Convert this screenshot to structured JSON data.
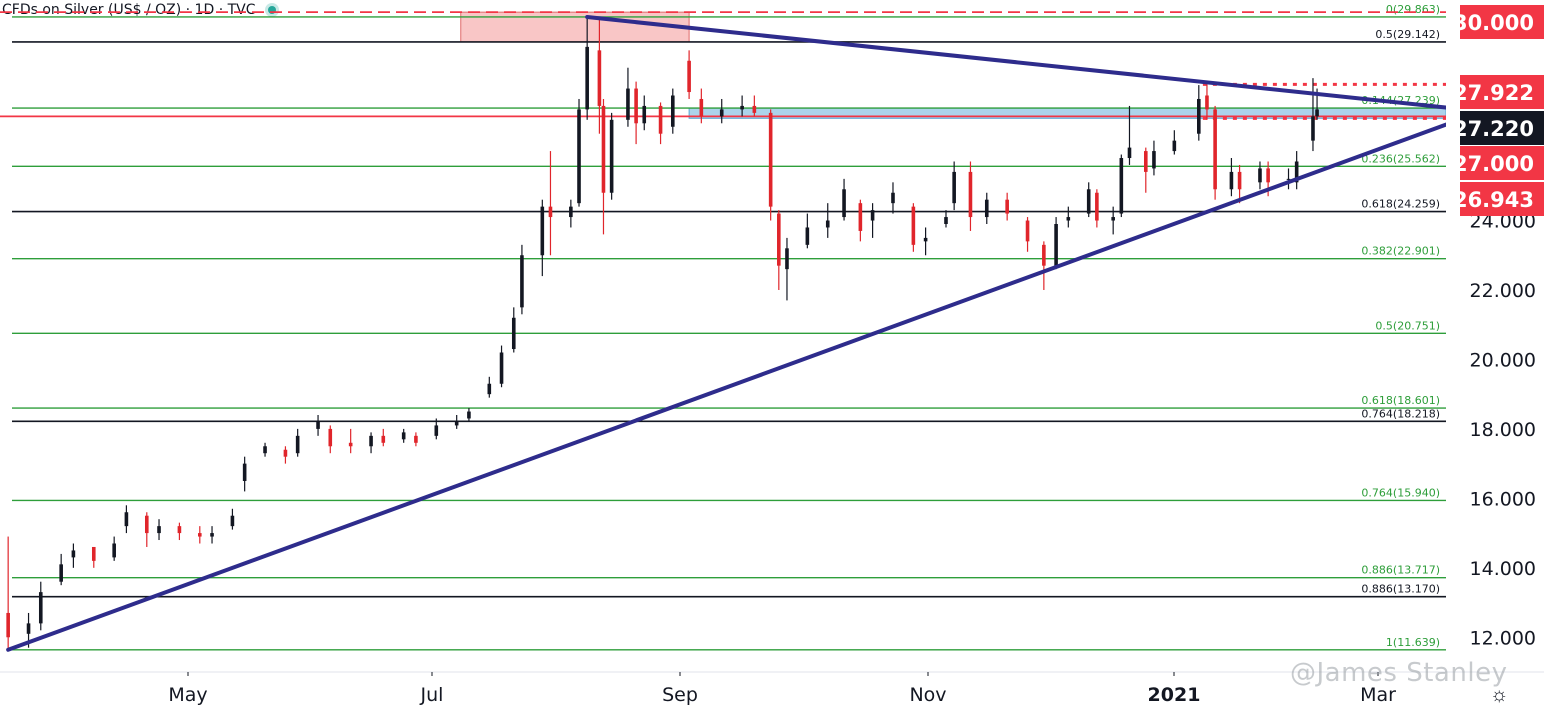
{
  "header": {
    "title": "CFDs on Silver (US$ / OZ) · 1D · TVC"
  },
  "watermark": "@James Stanley",
  "icons": {
    "settings": "gear-icon",
    "status": "status-dot"
  },
  "colors": {
    "up": "#131722",
    "down": "#e0252b",
    "fib_green": "#2e9e3a",
    "fib_black": "#131722",
    "trendline": "#2e2c8c",
    "tag_red": "#f23645",
    "tag_navy": "#131722",
    "zone_red": "#f7b8b8",
    "zone_blue": "#9ecbe8"
  },
  "chart_data": {
    "type": "candlestick",
    "symbol": "CFDs on Silver (US$ / OZ)",
    "timeframe": "1D",
    "y_axis": {
      "ylim": [
        11.0,
        30.35
      ],
      "ticks": [
        "12.000",
        "14.000",
        "16.000",
        "18.000",
        "20.000",
        "22.000",
        "24.000"
      ]
    },
    "x_axis": {
      "labels": [
        "May",
        "Jul",
        "Sep",
        "Nov",
        "2021",
        "Mar"
      ],
      "bold": [
        "2021"
      ]
    },
    "price_tags": [
      {
        "label": "30.000",
        "value": 30.0,
        "style": "red"
      },
      {
        "label": "27.922",
        "value": 27.922,
        "style": "red"
      },
      {
        "label": "27.220",
        "value": 27.22,
        "style": "navy"
      },
      {
        "label": "27.000",
        "value": 27.0,
        "style": "red"
      },
      {
        "label": "26.943",
        "value": 26.943,
        "style": "red"
      }
    ],
    "fib_levels": [
      {
        "label": "0(29.863)",
        "value": 29.863,
        "color": "green"
      },
      {
        "label": "0.5(29.142)",
        "value": 29.142,
        "color": "black"
      },
      {
        "label": "0.144(27.239)",
        "value": 27.239,
        "color": "green"
      },
      {
        "label": "0.236(25.562)",
        "value": 25.562,
        "color": "green"
      },
      {
        "label": "0.618(24.259)",
        "value": 24.259,
        "color": "black"
      },
      {
        "label": "0.382(22.901)",
        "value": 22.901,
        "color": "green"
      },
      {
        "label": "0.5(20.751)",
        "value": 20.751,
        "color": "green"
      },
      {
        "label": "0.618(18.601)",
        "value": 18.601,
        "color": "green"
      },
      {
        "label": "0.764(18.218)",
        "value": 18.218,
        "color": "black"
      },
      {
        "label": "0.764(15.940)",
        "value": 15.94,
        "color": "green"
      },
      {
        "label": "0.886(13.717)",
        "value": 13.717,
        "color": "green"
      },
      {
        "label": "0.886(13.170)",
        "value": 13.17,
        "color": "black"
      },
      {
        "label": "1(11.639)",
        "value": 11.639,
        "color": "green"
      }
    ],
    "horizontal_lines": [
      {
        "value": 30.0,
        "style": "red-dashed"
      },
      {
        "value": 27.0,
        "style": "red-solid"
      },
      {
        "value": 27.922,
        "style": "red-dotted",
        "from_date": "2021-01-05"
      },
      {
        "value": 26.943,
        "style": "red-dotted",
        "from_date": "2021-01-05"
      }
    ],
    "zones": [
      {
        "from_date": "2020-07-07",
        "to_date": "2020-09-01",
        "low": 29.142,
        "high": 30.0,
        "color": "red"
      },
      {
        "from_date": "2020-09-01",
        "to_date": "2021-03-10",
        "low": 26.943,
        "high": 27.239,
        "color": "blue"
      }
    ],
    "trendlines": [
      {
        "from": [
          "2020-08-07",
          29.86
        ],
        "to": [
          "2021-03-10",
          27.2
        ]
      },
      {
        "from": [
          "2020-03-18",
          11.64
        ],
        "to": [
          "2021-03-10",
          26.95
        ]
      }
    ],
    "candles": [
      {
        "date": "2020-03-18",
        "o": 12.7,
        "h": 14.9,
        "l": 11.6,
        "c": 12.0
      },
      {
        "date": "2020-03-23",
        "o": 12.1,
        "h": 12.7,
        "l": 11.7,
        "c": 12.4
      },
      {
        "date": "2020-03-26",
        "o": 12.4,
        "h": 13.6,
        "l": 12.2,
        "c": 13.3
      },
      {
        "date": "2020-03-31",
        "o": 13.6,
        "h": 14.4,
        "l": 13.5,
        "c": 14.1
      },
      {
        "date": "2020-04-03",
        "o": 14.3,
        "h": 14.7,
        "l": 14.0,
        "c": 14.5
      },
      {
        "date": "2020-04-08",
        "o": 14.6,
        "h": 14.6,
        "l": 14.0,
        "c": 14.2
      },
      {
        "date": "2020-04-13",
        "o": 14.3,
        "h": 14.9,
        "l": 14.2,
        "c": 14.7
      },
      {
        "date": "2020-04-16",
        "o": 15.2,
        "h": 15.8,
        "l": 15.0,
        "c": 15.6
      },
      {
        "date": "2020-04-21",
        "o": 15.5,
        "h": 15.6,
        "l": 14.6,
        "c": 15.0
      },
      {
        "date": "2020-04-24",
        "o": 15.0,
        "h": 15.4,
        "l": 14.8,
        "c": 15.2
      },
      {
        "date": "2020-04-29",
        "o": 15.2,
        "h": 15.3,
        "l": 14.8,
        "c": 15.0
      },
      {
        "date": "2020-05-04",
        "o": 15.0,
        "h": 15.2,
        "l": 14.7,
        "c": 14.9
      },
      {
        "date": "2020-05-07",
        "o": 14.9,
        "h": 15.2,
        "l": 14.7,
        "c": 15.0
      },
      {
        "date": "2020-05-12",
        "o": 15.2,
        "h": 15.7,
        "l": 15.1,
        "c": 15.5
      },
      {
        "date": "2020-05-15",
        "o": 16.5,
        "h": 17.2,
        "l": 16.2,
        "c": 17.0
      },
      {
        "date": "2020-05-20",
        "o": 17.3,
        "h": 17.6,
        "l": 17.2,
        "c": 17.5
      },
      {
        "date": "2020-05-25",
        "o": 17.4,
        "h": 17.5,
        "l": 17.0,
        "c": 17.2
      },
      {
        "date": "2020-05-28",
        "o": 17.3,
        "h": 18.0,
        "l": 17.2,
        "c": 17.8
      },
      {
        "date": "2020-06-02",
        "o": 18.0,
        "h": 18.4,
        "l": 17.8,
        "c": 18.2
      },
      {
        "date": "2020-06-05",
        "o": 18.0,
        "h": 18.1,
        "l": 17.3,
        "c": 17.5
      },
      {
        "date": "2020-06-10",
        "o": 17.6,
        "h": 18.0,
        "l": 17.3,
        "c": 17.5
      },
      {
        "date": "2020-06-15",
        "o": 17.5,
        "h": 17.9,
        "l": 17.3,
        "c": 17.8
      },
      {
        "date": "2020-06-18",
        "o": 17.8,
        "h": 18.0,
        "l": 17.5,
        "c": 17.6
      },
      {
        "date": "2020-06-23",
        "o": 17.7,
        "h": 18.0,
        "l": 17.6,
        "c": 17.9
      },
      {
        "date": "2020-06-26",
        "o": 17.8,
        "h": 17.9,
        "l": 17.5,
        "c": 17.6
      },
      {
        "date": "2020-07-01",
        "o": 17.8,
        "h": 18.3,
        "l": 17.7,
        "c": 18.1
      },
      {
        "date": "2020-07-06",
        "o": 18.1,
        "h": 18.4,
        "l": 18.0,
        "c": 18.2
      },
      {
        "date": "2020-07-09",
        "o": 18.3,
        "h": 18.6,
        "l": 18.2,
        "c": 18.5
      },
      {
        "date": "2020-07-14",
        "o": 19.0,
        "h": 19.5,
        "l": 18.9,
        "c": 19.3
      },
      {
        "date": "2020-07-17",
        "o": 19.3,
        "h": 20.4,
        "l": 19.2,
        "c": 20.2
      },
      {
        "date": "2020-07-20",
        "o": 20.3,
        "h": 21.5,
        "l": 20.2,
        "c": 21.2
      },
      {
        "date": "2020-07-22",
        "o": 21.5,
        "h": 23.3,
        "l": 21.3,
        "c": 23.0
      },
      {
        "date": "2020-07-27",
        "o": 23.0,
        "h": 24.6,
        "l": 22.4,
        "c": 24.4
      },
      {
        "date": "2020-07-29",
        "o": 24.4,
        "h": 26.0,
        "l": 23.0,
        "c": 24.1
      },
      {
        "date": "2020-08-03",
        "o": 24.1,
        "h": 24.6,
        "l": 23.8,
        "c": 24.4
      },
      {
        "date": "2020-08-05",
        "o": 24.5,
        "h": 27.5,
        "l": 24.4,
        "c": 27.2
      },
      {
        "date": "2020-08-07",
        "o": 27.2,
        "h": 29.86,
        "l": 26.9,
        "c": 29.0
      },
      {
        "date": "2020-08-10",
        "o": 28.9,
        "h": 29.8,
        "l": 26.5,
        "c": 27.3
      },
      {
        "date": "2020-08-11",
        "o": 27.3,
        "h": 27.5,
        "l": 23.6,
        "c": 24.8
      },
      {
        "date": "2020-08-13",
        "o": 24.8,
        "h": 27.1,
        "l": 24.6,
        "c": 26.9
      },
      {
        "date": "2020-08-17",
        "o": 26.9,
        "h": 28.4,
        "l": 26.7,
        "c": 27.8
      },
      {
        "date": "2020-08-19",
        "o": 27.8,
        "h": 28.0,
        "l": 26.2,
        "c": 26.8
      },
      {
        "date": "2020-08-21",
        "o": 26.8,
        "h": 27.6,
        "l": 26.6,
        "c": 27.3
      },
      {
        "date": "2020-08-25",
        "o": 27.3,
        "h": 27.4,
        "l": 26.2,
        "c": 26.5
      },
      {
        "date": "2020-08-28",
        "o": 26.7,
        "h": 27.8,
        "l": 26.5,
        "c": 27.6
      },
      {
        "date": "2020-09-01",
        "o": 28.6,
        "h": 28.9,
        "l": 27.5,
        "c": 27.7
      },
      {
        "date": "2020-09-04",
        "o": 27.5,
        "h": 27.8,
        "l": 26.8,
        "c": 27.0
      },
      {
        "date": "2020-09-09",
        "o": 27.0,
        "h": 27.5,
        "l": 26.8,
        "c": 27.2
      },
      {
        "date": "2020-09-14",
        "o": 27.2,
        "h": 27.6,
        "l": 27.0,
        "c": 27.3
      },
      {
        "date": "2020-09-17",
        "o": 27.3,
        "h": 27.6,
        "l": 27.0,
        "c": 27.1
      },
      {
        "date": "2020-09-21",
        "o": 27.1,
        "h": 27.2,
        "l": 24.0,
        "c": 24.4
      },
      {
        "date": "2020-09-23",
        "o": 24.2,
        "h": 24.3,
        "l": 22.0,
        "c": 22.7
      },
      {
        "date": "2020-09-25",
        "o": 22.6,
        "h": 23.5,
        "l": 21.7,
        "c": 23.2
      },
      {
        "date": "2020-09-30",
        "o": 23.3,
        "h": 24.2,
        "l": 23.2,
        "c": 23.8
      },
      {
        "date": "2020-10-05",
        "o": 23.8,
        "h": 24.5,
        "l": 23.5,
        "c": 24.0
      },
      {
        "date": "2020-10-09",
        "o": 24.1,
        "h": 25.2,
        "l": 24.0,
        "c": 24.9
      },
      {
        "date": "2020-10-13",
        "o": 24.5,
        "h": 24.6,
        "l": 23.4,
        "c": 23.7
      },
      {
        "date": "2020-10-16",
        "o": 24.0,
        "h": 24.5,
        "l": 23.5,
        "c": 24.3
      },
      {
        "date": "2020-10-21",
        "o": 24.5,
        "h": 25.1,
        "l": 24.2,
        "c": 24.8
      },
      {
        "date": "2020-10-26",
        "o": 24.4,
        "h": 24.5,
        "l": 23.1,
        "c": 23.3
      },
      {
        "date": "2020-10-29",
        "o": 23.4,
        "h": 23.8,
        "l": 23.0,
        "c": 23.5
      },
      {
        "date": "2020-11-03",
        "o": 23.9,
        "h": 24.3,
        "l": 23.8,
        "c": 24.1
      },
      {
        "date": "2020-11-05",
        "o": 24.5,
        "h": 25.7,
        "l": 24.3,
        "c": 25.4
      },
      {
        "date": "2020-11-09",
        "o": 25.4,
        "h": 25.7,
        "l": 23.7,
        "c": 24.1
      },
      {
        "date": "2020-11-13",
        "o": 24.1,
        "h": 24.8,
        "l": 23.9,
        "c": 24.6
      },
      {
        "date": "2020-11-18",
        "o": 24.6,
        "h": 24.8,
        "l": 24.0,
        "c": 24.2
      },
      {
        "date": "2020-11-23",
        "o": 24.0,
        "h": 24.1,
        "l": 23.1,
        "c": 23.4
      },
      {
        "date": "2020-11-27",
        "o": 23.3,
        "h": 23.4,
        "l": 22.0,
        "c": 22.7
      },
      {
        "date": "2020-11-30",
        "o": 22.7,
        "h": 24.1,
        "l": 22.6,
        "c": 23.9
      },
      {
        "date": "2020-12-03",
        "o": 24.0,
        "h": 24.4,
        "l": 23.8,
        "c": 24.1
      },
      {
        "date": "2020-12-08",
        "o": 24.2,
        "h": 25.1,
        "l": 24.1,
        "c": 24.9
      },
      {
        "date": "2020-12-10",
        "o": 24.8,
        "h": 24.9,
        "l": 23.8,
        "c": 24.0
      },
      {
        "date": "2020-12-14",
        "o": 24.0,
        "h": 24.4,
        "l": 23.6,
        "c": 24.1
      },
      {
        "date": "2020-12-16",
        "o": 24.2,
        "h": 25.9,
        "l": 24.1,
        "c": 25.8
      },
      {
        "date": "2020-12-18",
        "o": 25.8,
        "h": 27.3,
        "l": 25.6,
        "c": 26.1
      },
      {
        "date": "2020-12-22",
        "o": 26.0,
        "h": 26.1,
        "l": 24.8,
        "c": 25.4
      },
      {
        "date": "2020-12-24",
        "o": 25.5,
        "h": 26.3,
        "l": 25.3,
        "c": 26.0
      },
      {
        "date": "2020-12-29",
        "o": 26.0,
        "h": 26.6,
        "l": 25.9,
        "c": 26.3
      },
      {
        "date": "2021-01-04",
        "o": 26.5,
        "h": 27.9,
        "l": 26.3,
        "c": 27.5
      },
      {
        "date": "2021-01-06",
        "o": 27.6,
        "h": 27.92,
        "l": 26.9,
        "c": 27.2
      },
      {
        "date": "2021-01-08",
        "o": 27.2,
        "h": 27.3,
        "l": 24.6,
        "c": 24.9
      },
      {
        "date": "2021-01-12",
        "o": 24.9,
        "h": 25.8,
        "l": 24.7,
        "c": 25.4
      },
      {
        "date": "2021-01-14",
        "o": 25.4,
        "h": 25.6,
        "l": 24.5,
        "c": 24.9
      },
      {
        "date": "2021-01-19",
        "o": 25.1,
        "h": 25.7,
        "l": 24.9,
        "c": 25.5
      },
      {
        "date": "2021-01-21",
        "o": 25.5,
        "h": 25.7,
        "l": 24.7,
        "c": 25.1
      },
      {
        "date": "2021-01-26",
        "o": 25.2,
        "h": 25.5,
        "l": 24.9,
        "c": 25.2
      },
      {
        "date": "2021-01-28",
        "o": 25.1,
        "h": 26.0,
        "l": 24.9,
        "c": 25.7
      },
      {
        "date": "2021-02-01",
        "o": 26.3,
        "h": 28.1,
        "l": 26.0,
        "c": 27.0
      },
      {
        "date": "2021-02-02",
        "o": 27.0,
        "h": 27.8,
        "l": 26.9,
        "c": 27.2
      }
    ]
  }
}
